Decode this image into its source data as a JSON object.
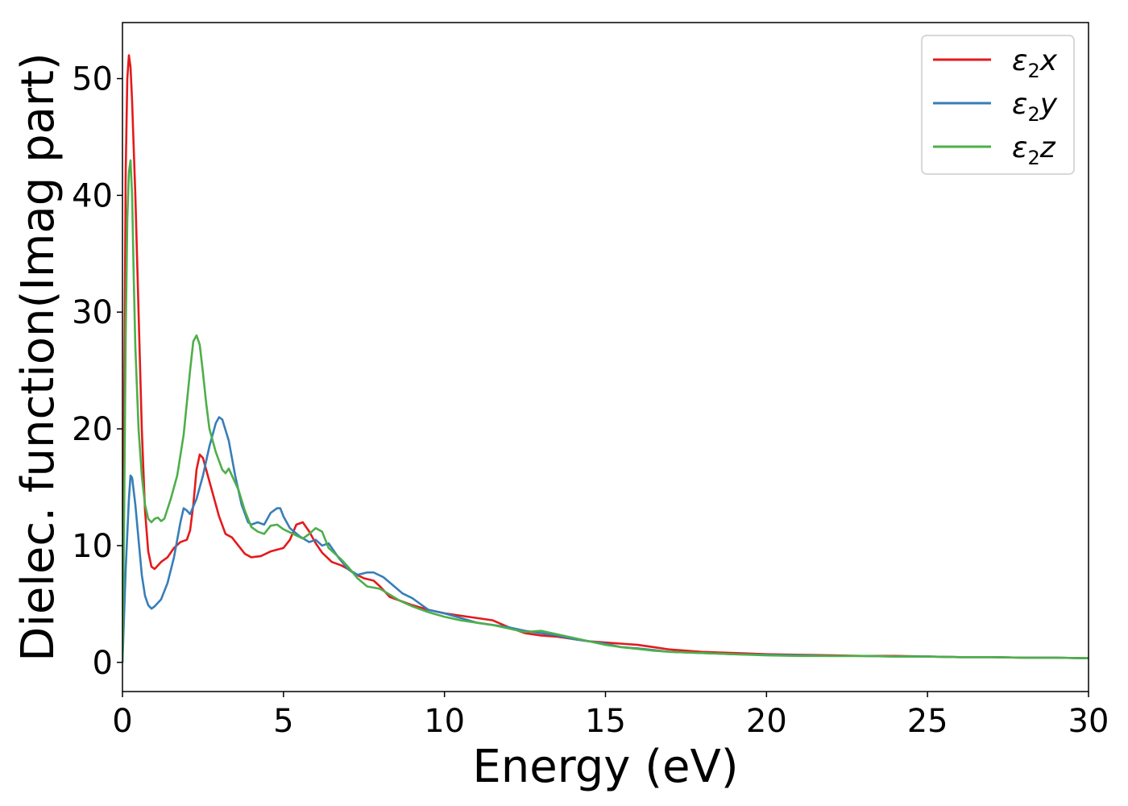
{
  "chart_data": {
    "type": "line",
    "title": "",
    "xlabel": "Energy (eV)",
    "ylabel": "Dielec. function(Imag part)",
    "xlim": [
      0,
      30
    ],
    "ylim": [
      -2.5,
      54.8
    ],
    "xticks": [
      0,
      5,
      10,
      15,
      20,
      25,
      30
    ],
    "xtick_labels": [
      "0",
      "5",
      "10",
      "15",
      "20",
      "25",
      "30"
    ],
    "yticks": [
      0,
      10,
      20,
      30,
      40,
      50
    ],
    "ytick_labels": [
      "0",
      "10",
      "20",
      "30",
      "40",
      "50"
    ],
    "grid": false,
    "legend_position": "top-right",
    "legend": [
      {
        "prefix": "ε",
        "sub": "2",
        "suffix": "x"
      },
      {
        "prefix": "ε",
        "sub": "2",
        "suffix": "y"
      },
      {
        "prefix": "ε",
        "sub": "2",
        "suffix": "z"
      }
    ],
    "series": [
      {
        "name": "ε2x",
        "color": "#e41a1c",
        "points": [
          [
            0,
            0
          ],
          [
            0.05,
            20
          ],
          [
            0.1,
            42
          ],
          [
            0.15,
            50
          ],
          [
            0.2,
            52
          ],
          [
            0.25,
            51
          ],
          [
            0.3,
            48
          ],
          [
            0.4,
            40
          ],
          [
            0.5,
            30
          ],
          [
            0.6,
            20
          ],
          [
            0.7,
            13
          ],
          [
            0.8,
            9.5
          ],
          [
            0.9,
            8.2
          ],
          [
            1.0,
            8.0
          ],
          [
            1.2,
            8.6
          ],
          [
            1.4,
            9.0
          ],
          [
            1.6,
            9.8
          ],
          [
            1.8,
            10.3
          ],
          [
            2.0,
            10.5
          ],
          [
            2.1,
            11.3
          ],
          [
            2.2,
            13.5
          ],
          [
            2.3,
            16.5
          ],
          [
            2.4,
            17.8
          ],
          [
            2.5,
            17.5
          ],
          [
            2.6,
            16.5
          ],
          [
            2.8,
            14.5
          ],
          [
            3.0,
            12.5
          ],
          [
            3.2,
            11.0
          ],
          [
            3.4,
            10.7
          ],
          [
            3.6,
            10.0
          ],
          [
            3.8,
            9.3
          ],
          [
            4.0,
            9.0
          ],
          [
            4.3,
            9.1
          ],
          [
            4.6,
            9.5
          ],
          [
            5.0,
            9.8
          ],
          [
            5.2,
            10.5
          ],
          [
            5.4,
            11.8
          ],
          [
            5.6,
            12.0
          ],
          [
            5.8,
            11.2
          ],
          [
            6.0,
            10.2
          ],
          [
            6.2,
            9.4
          ],
          [
            6.5,
            8.6
          ],
          [
            6.8,
            8.3
          ],
          [
            7.0,
            8.0
          ],
          [
            7.2,
            7.6
          ],
          [
            7.5,
            7.2
          ],
          [
            7.8,
            7.0
          ],
          [
            8.0,
            6.5
          ],
          [
            8.3,
            5.6
          ],
          [
            8.6,
            5.3
          ],
          [
            9.0,
            4.9
          ],
          [
            9.5,
            4.5
          ],
          [
            10.0,
            4.2
          ],
          [
            10.5,
            4.0
          ],
          [
            11.0,
            3.8
          ],
          [
            11.5,
            3.6
          ],
          [
            12.0,
            3.0
          ],
          [
            12.5,
            2.5
          ],
          [
            13.0,
            2.3
          ],
          [
            13.5,
            2.2
          ],
          [
            14.0,
            2.0
          ],
          [
            14.5,
            1.8
          ],
          [
            15.0,
            1.7
          ],
          [
            15.5,
            1.6
          ],
          [
            16.0,
            1.5
          ],
          [
            16.5,
            1.3
          ],
          [
            17.0,
            1.1
          ],
          [
            17.5,
            1.0
          ],
          [
            18.0,
            0.9
          ],
          [
            19.0,
            0.8
          ],
          [
            20.0,
            0.7
          ],
          [
            21.0,
            0.65
          ],
          [
            22.0,
            0.6
          ],
          [
            23.0,
            0.55
          ],
          [
            24.0,
            0.55
          ],
          [
            25.0,
            0.5
          ],
          [
            26.0,
            0.45
          ],
          [
            27.0,
            0.45
          ],
          [
            28.0,
            0.4
          ],
          [
            29.0,
            0.4
          ],
          [
            30.0,
            0.35
          ]
        ]
      },
      {
        "name": "ε2y",
        "color": "#377eb8",
        "points": [
          [
            0,
            0
          ],
          [
            0.1,
            8
          ],
          [
            0.2,
            14
          ],
          [
            0.25,
            16
          ],
          [
            0.3,
            15.8
          ],
          [
            0.4,
            13.5
          ],
          [
            0.5,
            10.5
          ],
          [
            0.6,
            7.5
          ],
          [
            0.7,
            5.7
          ],
          [
            0.8,
            4.9
          ],
          [
            0.9,
            4.6
          ],
          [
            1.0,
            4.8
          ],
          [
            1.2,
            5.4
          ],
          [
            1.4,
            6.8
          ],
          [
            1.6,
            9.0
          ],
          [
            1.8,
            12.0
          ],
          [
            1.9,
            13.2
          ],
          [
            2.0,
            13.0
          ],
          [
            2.1,
            12.7
          ],
          [
            2.3,
            14.0
          ],
          [
            2.5,
            16.0
          ],
          [
            2.7,
            18.5
          ],
          [
            2.9,
            20.5
          ],
          [
            3.0,
            21.0
          ],
          [
            3.1,
            20.8
          ],
          [
            3.3,
            19.0
          ],
          [
            3.5,
            16.0
          ],
          [
            3.7,
            13.5
          ],
          [
            3.9,
            12.0
          ],
          [
            4.0,
            11.8
          ],
          [
            4.2,
            12.0
          ],
          [
            4.4,
            11.8
          ],
          [
            4.6,
            12.8
          ],
          [
            4.8,
            13.2
          ],
          [
            4.9,
            13.2
          ],
          [
            5.0,
            12.5
          ],
          [
            5.2,
            11.5
          ],
          [
            5.5,
            10.8
          ],
          [
            5.8,
            10.3
          ],
          [
            6.0,
            10.5
          ],
          [
            6.2,
            10.0
          ],
          [
            6.4,
            10.2
          ],
          [
            6.7,
            9.0
          ],
          [
            7.0,
            8.0
          ],
          [
            7.3,
            7.5
          ],
          [
            7.6,
            7.7
          ],
          [
            7.8,
            7.7
          ],
          [
            8.1,
            7.3
          ],
          [
            8.4,
            6.6
          ],
          [
            8.7,
            5.9
          ],
          [
            9.0,
            5.5
          ],
          [
            9.5,
            4.5
          ],
          [
            10.0,
            4.2
          ],
          [
            10.5,
            3.8
          ],
          [
            11.0,
            3.4
          ],
          [
            11.5,
            3.2
          ],
          [
            12.0,
            3.0
          ],
          [
            12.5,
            2.7
          ],
          [
            13.0,
            2.5
          ],
          [
            13.5,
            2.3
          ],
          [
            14.0,
            2.0
          ],
          [
            14.5,
            1.8
          ],
          [
            15.0,
            1.6
          ],
          [
            15.5,
            1.3
          ],
          [
            16.0,
            1.2
          ],
          [
            16.5,
            1.05
          ],
          [
            17.0,
            0.9
          ],
          [
            18.0,
            0.8
          ],
          [
            19.0,
            0.7
          ],
          [
            20.0,
            0.65
          ],
          [
            21.0,
            0.6
          ],
          [
            22.0,
            0.55
          ],
          [
            23.0,
            0.55
          ],
          [
            24.0,
            0.5
          ],
          [
            25.0,
            0.5
          ],
          [
            26.0,
            0.45
          ],
          [
            27.0,
            0.45
          ],
          [
            28.0,
            0.4
          ],
          [
            29.0,
            0.4
          ],
          [
            30.0,
            0.35
          ]
        ]
      },
      {
        "name": "ε2z",
        "color": "#4daf4a",
        "points": [
          [
            0,
            0
          ],
          [
            0.05,
            12
          ],
          [
            0.1,
            28
          ],
          [
            0.15,
            38
          ],
          [
            0.2,
            42
          ],
          [
            0.25,
            43
          ],
          [
            0.3,
            40
          ],
          [
            0.35,
            33
          ],
          [
            0.4,
            27
          ],
          [
            0.5,
            20
          ],
          [
            0.6,
            16
          ],
          [
            0.7,
            13.5
          ],
          [
            0.8,
            12.3
          ],
          [
            0.9,
            12.0
          ],
          [
            1.0,
            12.3
          ],
          [
            1.1,
            12.4
          ],
          [
            1.2,
            12.1
          ],
          [
            1.3,
            12.3
          ],
          [
            1.5,
            14.0
          ],
          [
            1.7,
            16.0
          ],
          [
            1.9,
            19.5
          ],
          [
            2.1,
            25.0
          ],
          [
            2.2,
            27.5
          ],
          [
            2.3,
            28.0
          ],
          [
            2.4,
            27.2
          ],
          [
            2.5,
            24.8
          ],
          [
            2.6,
            22.2
          ],
          [
            2.7,
            20.0
          ],
          [
            2.9,
            18.0
          ],
          [
            3.1,
            16.5
          ],
          [
            3.2,
            16.2
          ],
          [
            3.3,
            16.6
          ],
          [
            3.4,
            16.0
          ],
          [
            3.6,
            14.8
          ],
          [
            3.8,
            13.0
          ],
          [
            4.0,
            11.6
          ],
          [
            4.2,
            11.2
          ],
          [
            4.4,
            11.0
          ],
          [
            4.6,
            11.7
          ],
          [
            4.8,
            11.8
          ],
          [
            5.0,
            11.4
          ],
          [
            5.3,
            11.0
          ],
          [
            5.6,
            10.6
          ],
          [
            5.8,
            11.0
          ],
          [
            6.0,
            11.5
          ],
          [
            6.2,
            11.2
          ],
          [
            6.4,
            9.8
          ],
          [
            6.6,
            9.3
          ],
          [
            6.8,
            8.8
          ],
          [
            7.0,
            8.2
          ],
          [
            7.3,
            7.2
          ],
          [
            7.6,
            6.5
          ],
          [
            8.0,
            6.3
          ],
          [
            8.3,
            5.8
          ],
          [
            8.6,
            5.3
          ],
          [
            9.0,
            4.8
          ],
          [
            9.5,
            4.3
          ],
          [
            10.0,
            3.9
          ],
          [
            10.5,
            3.6
          ],
          [
            11.0,
            3.4
          ],
          [
            11.5,
            3.2
          ],
          [
            12.0,
            2.9
          ],
          [
            12.5,
            2.6
          ],
          [
            13.0,
            2.7
          ],
          [
            13.5,
            2.4
          ],
          [
            14.0,
            2.1
          ],
          [
            14.5,
            1.8
          ],
          [
            15.0,
            1.5
          ],
          [
            15.5,
            1.3
          ],
          [
            16.0,
            1.15
          ],
          [
            16.5,
            1.0
          ],
          [
            17.0,
            0.9
          ],
          [
            18.0,
            0.8
          ],
          [
            19.0,
            0.7
          ],
          [
            20.0,
            0.6
          ],
          [
            21.0,
            0.55
          ],
          [
            22.0,
            0.55
          ],
          [
            23.0,
            0.55
          ],
          [
            24.0,
            0.5
          ],
          [
            25.0,
            0.5
          ],
          [
            26.0,
            0.45
          ],
          [
            27.0,
            0.45
          ],
          [
            28.0,
            0.4
          ],
          [
            29.0,
            0.4
          ],
          [
            30.0,
            0.35
          ]
        ]
      }
    ]
  }
}
